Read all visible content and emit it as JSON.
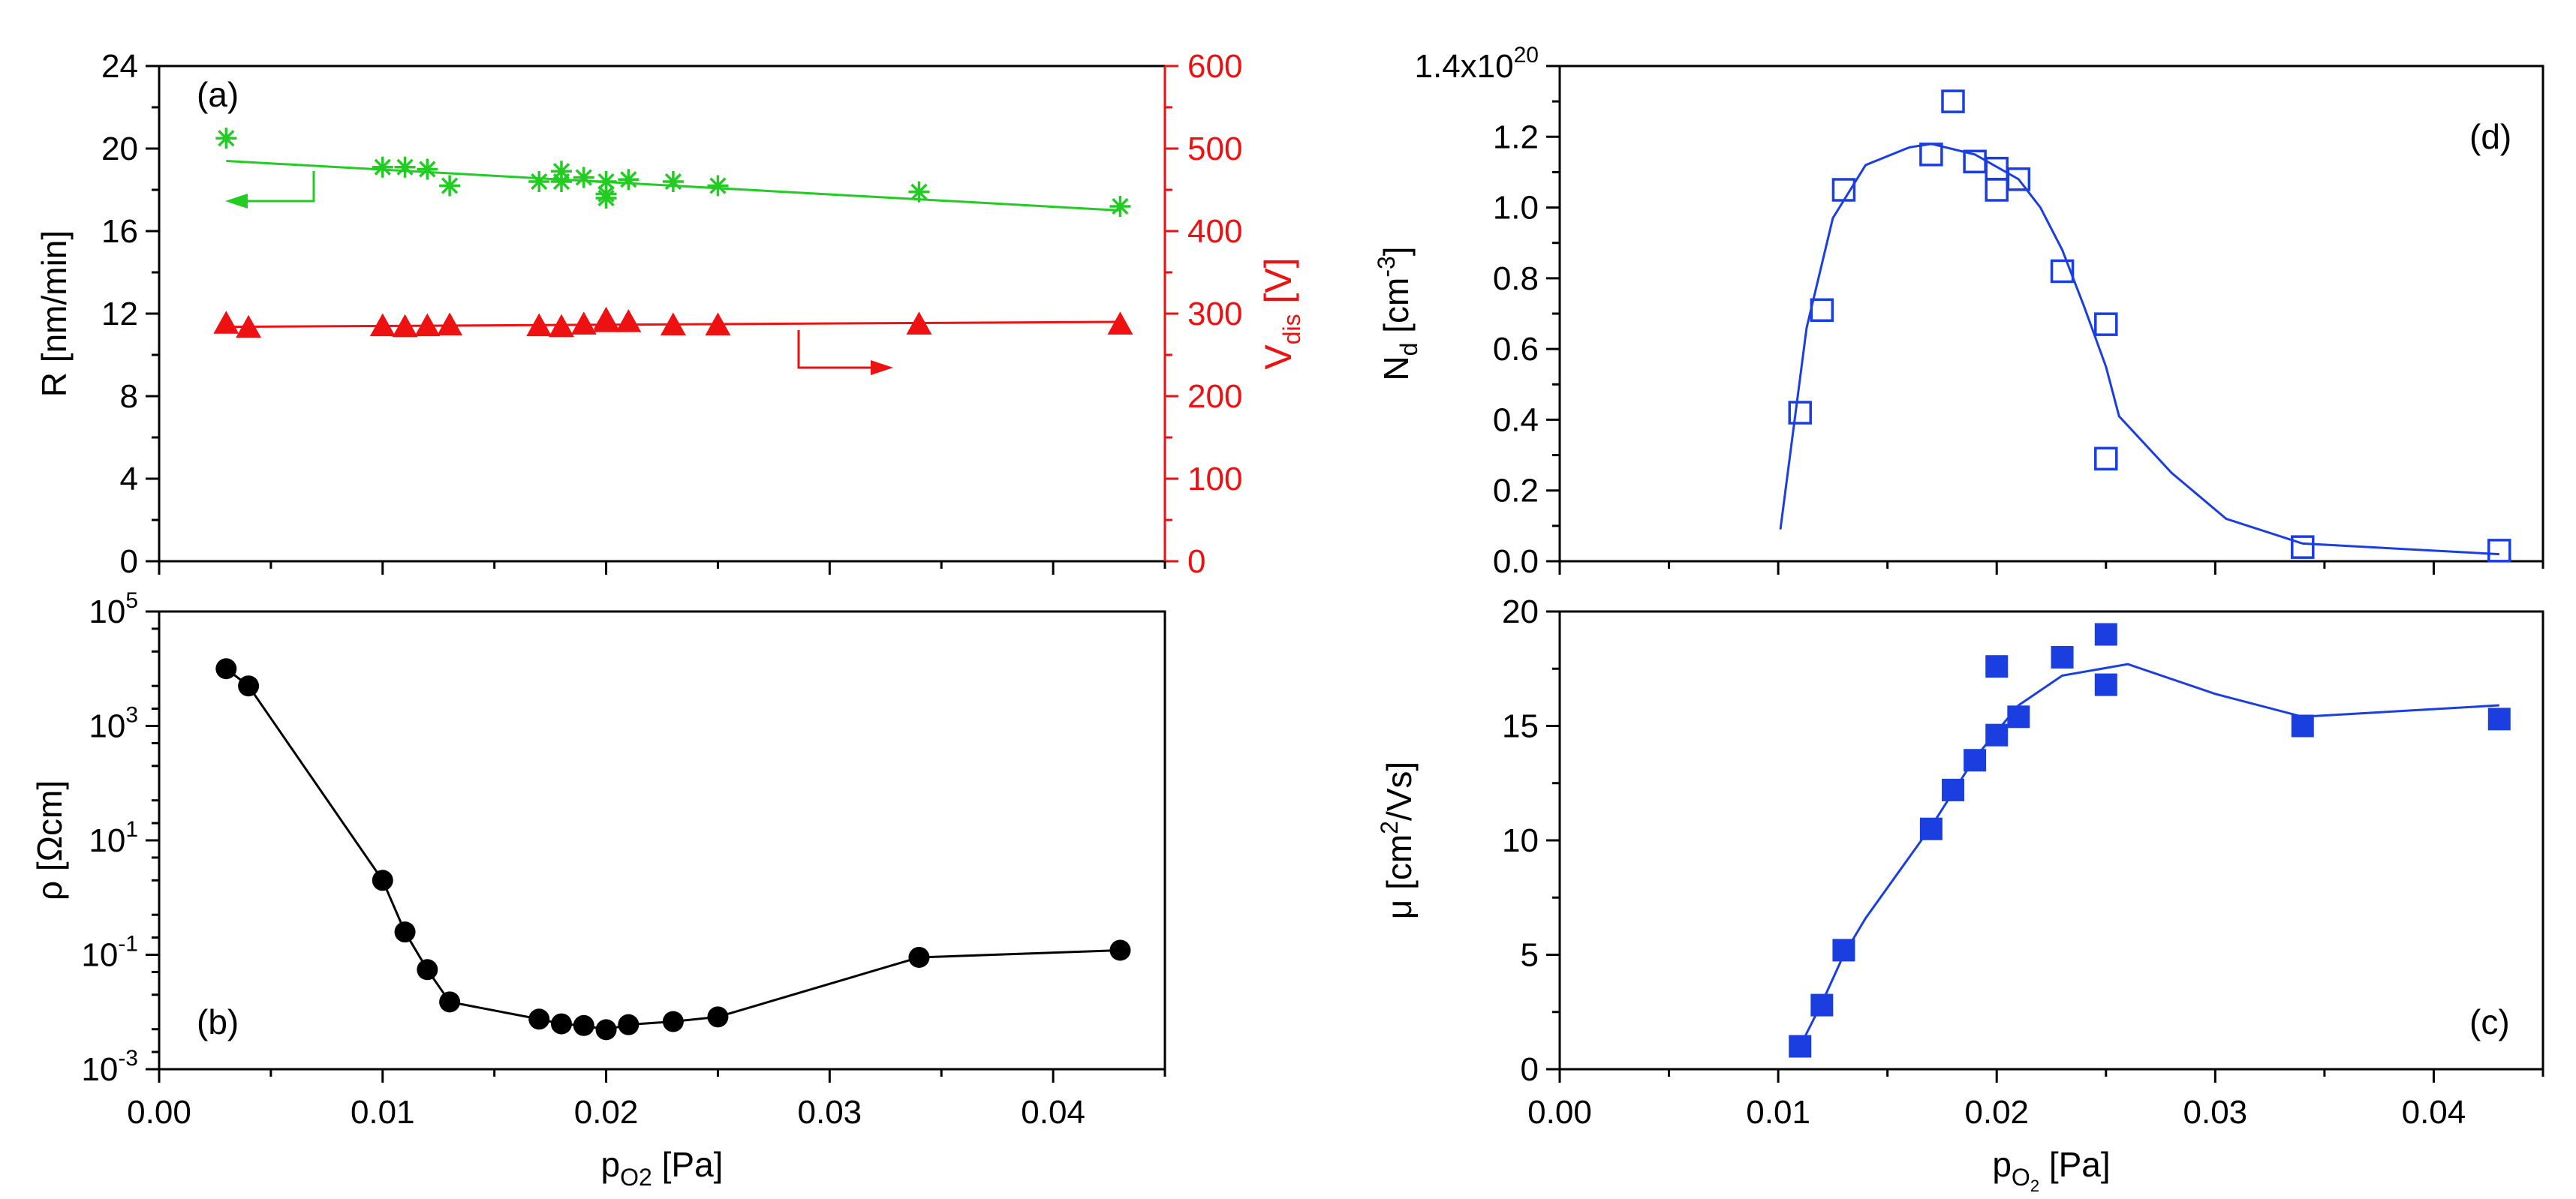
{
  "chart_data": [
    {
      "panel_label": "(a)",
      "type": "scatter",
      "xlim": [
        0.0,
        0.045
      ],
      "x_ticks": [
        "0.00",
        "0.01",
        "0.02",
        "0.03",
        "0.04"
      ],
      "ylabel_left": "R [nm/min]",
      "ylim_left": [
        0,
        24
      ],
      "left_ticks": [
        "0",
        "4",
        "8",
        "12",
        "16",
        "20",
        "24"
      ],
      "ylabel_right_main": "V",
      "ylabel_right_sub": "dis",
      "ylabel_right_tail": " [V]",
      "ylim_right": [
        0,
        600
      ],
      "right_ticks": [
        "0",
        "100",
        "200",
        "300",
        "400",
        "500",
        "600"
      ],
      "series": [
        {
          "name": "R",
          "axis": "left",
          "color": "#22cc22",
          "marker": "asterisk",
          "x": [
            0.003,
            0.01,
            0.011,
            0.012,
            0.013,
            0.017,
            0.018,
            0.018,
            0.019,
            0.02,
            0.02,
            0.02,
            0.021,
            0.023,
            0.025,
            0.034,
            0.043
          ],
          "values": [
            20.5,
            19.1,
            19.1,
            19.0,
            18.2,
            18.4,
            18.9,
            18.4,
            18.6,
            18.4,
            17.8,
            17.6,
            18.5,
            18.4,
            18.2,
            17.9,
            17.2
          ],
          "fit": [
            [
              0.003,
              19.4
            ],
            [
              0.043,
              17.0
            ]
          ]
        },
        {
          "name": "Vdis",
          "axis": "right",
          "color": "#ee1111",
          "marker": "triangle",
          "x": [
            0.003,
            0.004,
            0.01,
            0.011,
            0.012,
            0.013,
            0.017,
            0.018,
            0.019,
            0.02,
            0.02,
            0.021,
            0.023,
            0.025,
            0.034,
            0.043
          ],
          "values": [
            288,
            283,
            285,
            284,
            285,
            286,
            285,
            284,
            287,
            290,
            293,
            290,
            286,
            286,
            287,
            287
          ],
          "fit": [
            [
              0.003,
              284
            ],
            [
              0.043,
              290
            ]
          ]
        }
      ]
    },
    {
      "panel_label": "(b)",
      "type": "line",
      "xlim": [
        0.0,
        0.045
      ],
      "x_ticks": [
        "0.00",
        "0.01",
        "0.02",
        "0.03",
        "0.04"
      ],
      "xlabel_main": "p",
      "xlabel_sub": "O2",
      "xlabel_tail": " [Pa]",
      "ylabel": "ρ [Ωcm]",
      "yscale": "log",
      "ylim": [
        0.001,
        100000
      ],
      "y_ticks": [
        {
          "base": "10",
          "exp": "-3"
        },
        {
          "base": "10",
          "exp": "-1"
        },
        {
          "base": "10",
          "exp": "1"
        },
        {
          "base": "10",
          "exp": "3"
        },
        {
          "base": "10",
          "exp": "5"
        }
      ],
      "series": [
        {
          "name": "rho",
          "color": "#000000",
          "marker": "circle",
          "x": [
            0.003,
            0.004,
            0.01,
            0.011,
            0.012,
            0.013,
            0.017,
            0.018,
            0.019,
            0.02,
            0.021,
            0.023,
            0.025,
            0.034,
            0.043
          ],
          "values": [
            10000,
            5000,
            2.0,
            0.25,
            0.055,
            0.015,
            0.0075,
            0.0062,
            0.0058,
            0.0049,
            0.006,
            0.0068,
            0.0082,
            0.09,
            0.12
          ]
        }
      ]
    },
    {
      "panel_label": "(d)",
      "type": "scatter",
      "xlim": [
        0.0,
        0.045
      ],
      "x_ticks": [
        "0.00",
        "0.01",
        "0.02",
        "0.03",
        "0.04"
      ],
      "ylabel_main": "N",
      "ylabel_sub": "d",
      "ylabel_mid": " [cm",
      "ylabel_sup": "-3",
      "ylabel_tail": "]",
      "ylim": [
        0.0,
        1.4
      ],
      "y_ticks": [
        "0.0",
        "0.2",
        "0.4",
        "0.6",
        "0.8",
        "1.0",
        "1.2"
      ],
      "y_top_label_main": "1.4x10",
      "y_top_label_exp": "20",
      "series": [
        {
          "name": "Nd",
          "color": "#1a3ee0",
          "marker": "open-square",
          "x": [
            0.011,
            0.012,
            0.013,
            0.017,
            0.018,
            0.019,
            0.02,
            0.02,
            0.021,
            0.023,
            0.025,
            0.025,
            0.034,
            0.043
          ],
          "values": [
            0.42,
            0.71,
            1.05,
            1.15,
            1.3,
            1.13,
            1.11,
            1.05,
            1.08,
            0.82,
            0.67,
            0.29,
            0.04,
            0.03
          ],
          "fit": [
            [
              0.0101,
              0.09
            ],
            [
              0.0113,
              0.66
            ],
            [
              0.0125,
              0.97
            ],
            [
              0.014,
              1.12
            ],
            [
              0.016,
              1.17
            ],
            [
              0.017,
              1.18
            ],
            [
              0.019,
              1.15
            ],
            [
              0.021,
              1.08
            ],
            [
              0.022,
              1.0
            ],
            [
              0.023,
              0.88
            ],
            [
              0.024,
              0.72
            ],
            [
              0.025,
              0.55
            ],
            [
              0.0256,
              0.41
            ],
            [
              0.028,
              0.25
            ],
            [
              0.0305,
              0.12
            ],
            [
              0.034,
              0.05
            ],
            [
              0.043,
              0.02
            ]
          ]
        }
      ]
    },
    {
      "panel_label": "(c)",
      "type": "scatter",
      "xlim": [
        0.0,
        0.045
      ],
      "x_ticks": [
        "0.00",
        "0.01",
        "0.02",
        "0.03",
        "0.04"
      ],
      "xlabel_main": "p",
      "xlabel_sub": "O",
      "xlabel_subsub": "2",
      "xlabel_tail": " [Pa]",
      "ylabel_main": "μ [cm",
      "ylabel_sup": "2",
      "ylabel_tail": "/Vs]",
      "ylim": [
        0,
        20
      ],
      "y_ticks": [
        "0",
        "5",
        "10",
        "15",
        "20"
      ],
      "series": [
        {
          "name": "mu",
          "color": "#1a3ee0",
          "marker": "filled-square",
          "x": [
            0.011,
            0.012,
            0.013,
            0.017,
            0.018,
            0.019,
            0.02,
            0.02,
            0.021,
            0.023,
            0.025,
            0.025,
            0.034,
            0.043
          ],
          "values": [
            1.0,
            2.8,
            5.2,
            10.5,
            12.2,
            13.5,
            14.6,
            17.6,
            15.4,
            18.0,
            19.0,
            16.8,
            15.0,
            15.3
          ],
          "fit": [
            [
              0.011,
              1.0
            ],
            [
              0.012,
              2.9
            ],
            [
              0.013,
              5.0
            ],
            [
              0.014,
              6.6
            ],
            [
              0.017,
              10.6
            ],
            [
              0.019,
              13.6
            ],
            [
              0.021,
              15.9
            ],
            [
              0.023,
              17.2
            ],
            [
              0.026,
              17.7
            ],
            [
              0.03,
              16.4
            ],
            [
              0.034,
              15.4
            ],
            [
              0.043,
              15.9
            ]
          ]
        }
      ]
    }
  ]
}
